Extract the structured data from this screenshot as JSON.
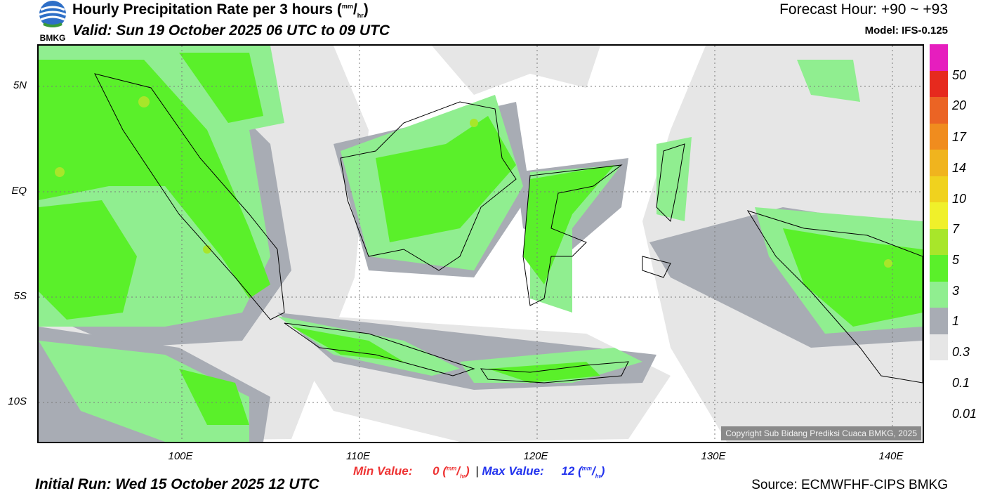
{
  "header": {
    "title_main": "Hourly Precipitation Rate per 3 hours",
    "title_unit_num": "mm",
    "title_unit_den": "hr",
    "valid": "Valid: Sun 19 October 2025 06 UTC to 09 UTC",
    "forecast_hour": "Forecast Hour: +90 ~ +93",
    "model": "Model: IFS-0.125",
    "logo_text": "BMKG"
  },
  "map": {
    "lat_labels": [
      "5N",
      "EQ",
      "5S",
      "10S"
    ],
    "lon_labels": [
      "100E",
      "110E",
      "120E",
      "130E",
      "140E"
    ],
    "copyright": "Copyright Sub Bidang Prediksi Cuaca BMKG, 2025",
    "colors": {
      "ocean_dry": "#ffffff",
      "trace": "#e6e6e6",
      "light": "#a8acb4",
      "moderate": "#90ee90",
      "heavy": "#5af02a"
    }
  },
  "colorbar": {
    "labels": [
      "50",
      "20",
      "17",
      "14",
      "10",
      "7",
      "5",
      "3",
      "1",
      "0.3",
      "0.1",
      "0.01"
    ],
    "colors": [
      "#e6e6e6",
      "#a8acb4",
      "#90ee90",
      "#5af02a",
      "#a8e62a",
      "#f0f02a",
      "#f0d21e",
      "#f0b41e",
      "#f08c1e",
      "#eb6424",
      "#e62a1e",
      "#e61ebe"
    ]
  },
  "footer": {
    "min_label": "Min Value:",
    "min_value": "0",
    "separator": "|",
    "max_label": "Max Value:",
    "max_value": "12",
    "unit_num": "mm",
    "unit_den": "hr",
    "initial_run": "Initial Run: Wed 15 October 2025 12 UTC",
    "source": "Source: ECMWFHF-CIPS BMKG"
  }
}
